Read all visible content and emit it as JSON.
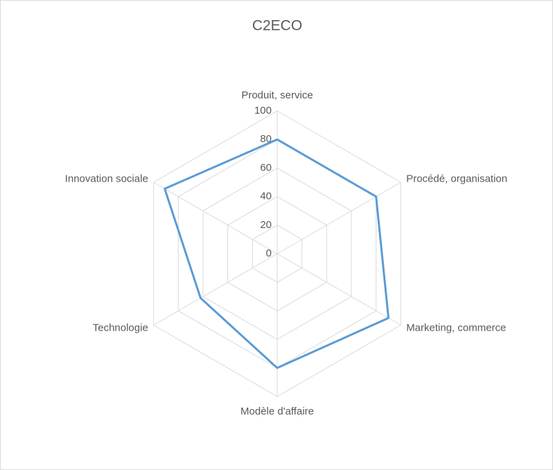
{
  "chart_data": {
    "type": "radar",
    "title": "C2ECO",
    "categories": [
      "Produit, service",
      "Procédé, organisation",
      "Marketing, commerce",
      "Modèle d'affaire",
      "Technologie",
      "Innovation sociale"
    ],
    "series": [
      {
        "name": "C2ECO",
        "color": "#5b9bd5",
        "values": [
          80,
          80,
          90,
          80,
          62,
          91
        ]
      }
    ],
    "ylim": [
      0,
      100
    ],
    "yticks": [
      0,
      20,
      40,
      60,
      80,
      100
    ],
    "grid": true
  }
}
